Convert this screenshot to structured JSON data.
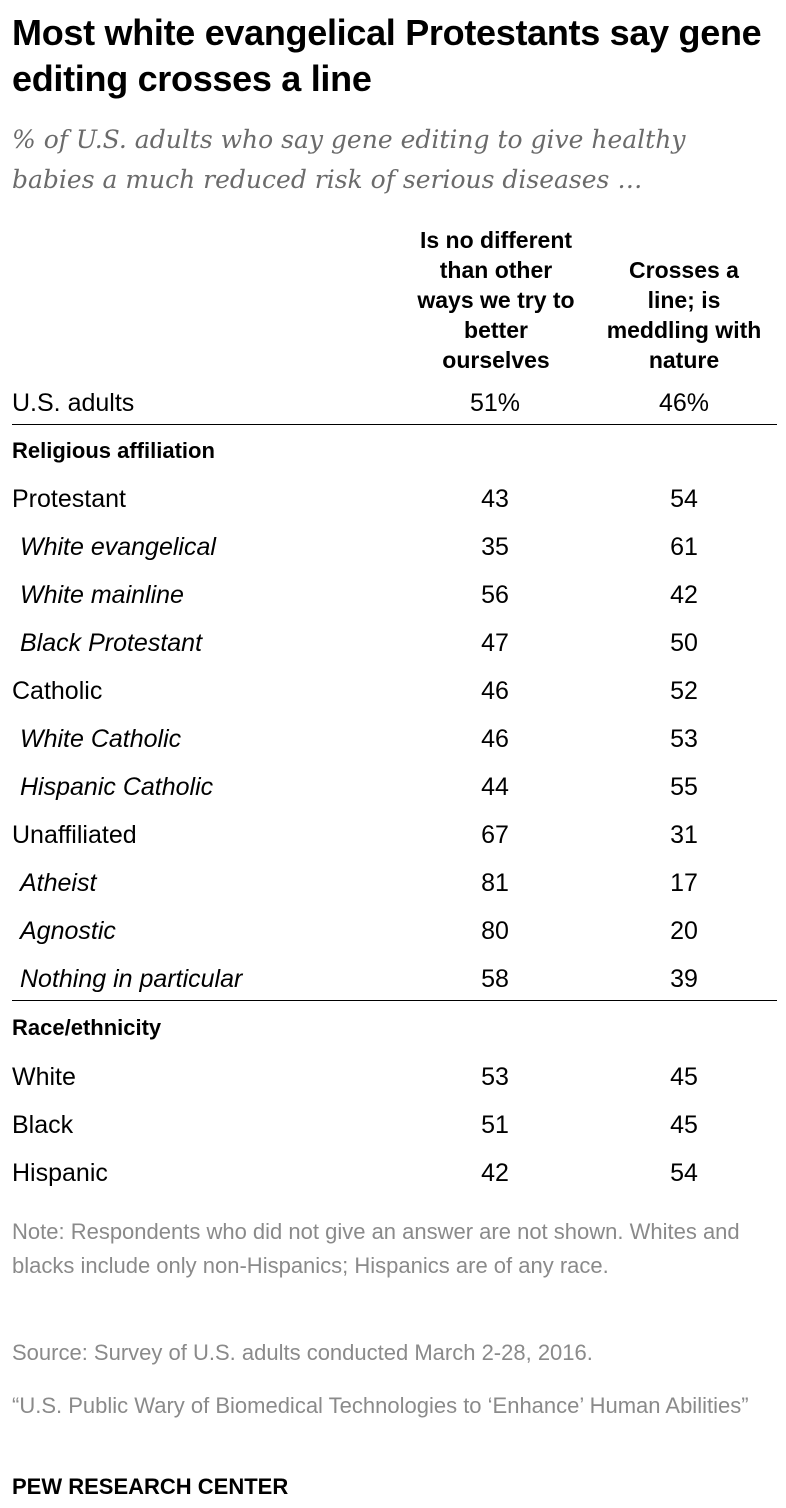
{
  "chart_data": {
    "type": "table",
    "title": "Most white evangelical Protestants say gene editing crosses a line",
    "subtitle": "% of U.S. adults who say gene editing to give healthy babies a much reduced risk of serious diseases …",
    "columns": [
      "Is no different than other ways we try to better ourselves",
      "Crosses a line; is meddling with nature"
    ],
    "total": {
      "label": "U.S. adults",
      "values": [
        "51%",
        "46%"
      ]
    },
    "groups": [
      {
        "heading": "Religious affiliation",
        "rows": [
          {
            "label": "Protestant",
            "values": [
              43,
              54
            ],
            "sub": false
          },
          {
            "label": "White evangelical",
            "values": [
              35,
              61
            ],
            "sub": true
          },
          {
            "label": "White mainline",
            "values": [
              56,
              42
            ],
            "sub": true
          },
          {
            "label": "Black Protestant",
            "values": [
              47,
              50
            ],
            "sub": true
          },
          {
            "label": "Catholic",
            "values": [
              46,
              52
            ],
            "sub": false
          },
          {
            "label": "White Catholic",
            "values": [
              46,
              53
            ],
            "sub": true
          },
          {
            "label": "Hispanic Catholic",
            "values": [
              44,
              55
            ],
            "sub": true
          },
          {
            "label": "Unaffiliated",
            "values": [
              67,
              31
            ],
            "sub": false
          },
          {
            "label": "Atheist",
            "values": [
              81,
              17
            ],
            "sub": true
          },
          {
            "label": "Agnostic",
            "values": [
              80,
              20
            ],
            "sub": true
          },
          {
            "label": "Nothing in particular",
            "values": [
              58,
              39
            ],
            "sub": true
          }
        ]
      },
      {
        "heading": "Race/ethnicity",
        "rows": [
          {
            "label": "White",
            "values": [
              53,
              45
            ],
            "sub": false
          },
          {
            "label": "Black",
            "values": [
              51,
              45
            ],
            "sub": false
          },
          {
            "label": "Hispanic",
            "values": [
              42,
              54
            ],
            "sub": false
          }
        ]
      }
    ]
  },
  "col1_lines": [
    "Is no different",
    "than other",
    "ways we try to",
    "better",
    "ourselves"
  ],
  "col2_lines": [
    "Crosses a",
    "line; is",
    "meddling with",
    "nature"
  ],
  "note": "Note: Respondents who did not give an answer are not shown. Whites and blacks include only non-Hispanics; Hispanics are of any race.",
  "source": "Source: Survey of U.S. adults conducted March 2-28, 2016.",
  "report": "“U.S. Public Wary of Biomedical Technologies to ‘Enhance’ Human Abilities”",
  "brand": "PEW RESEARCH CENTER"
}
